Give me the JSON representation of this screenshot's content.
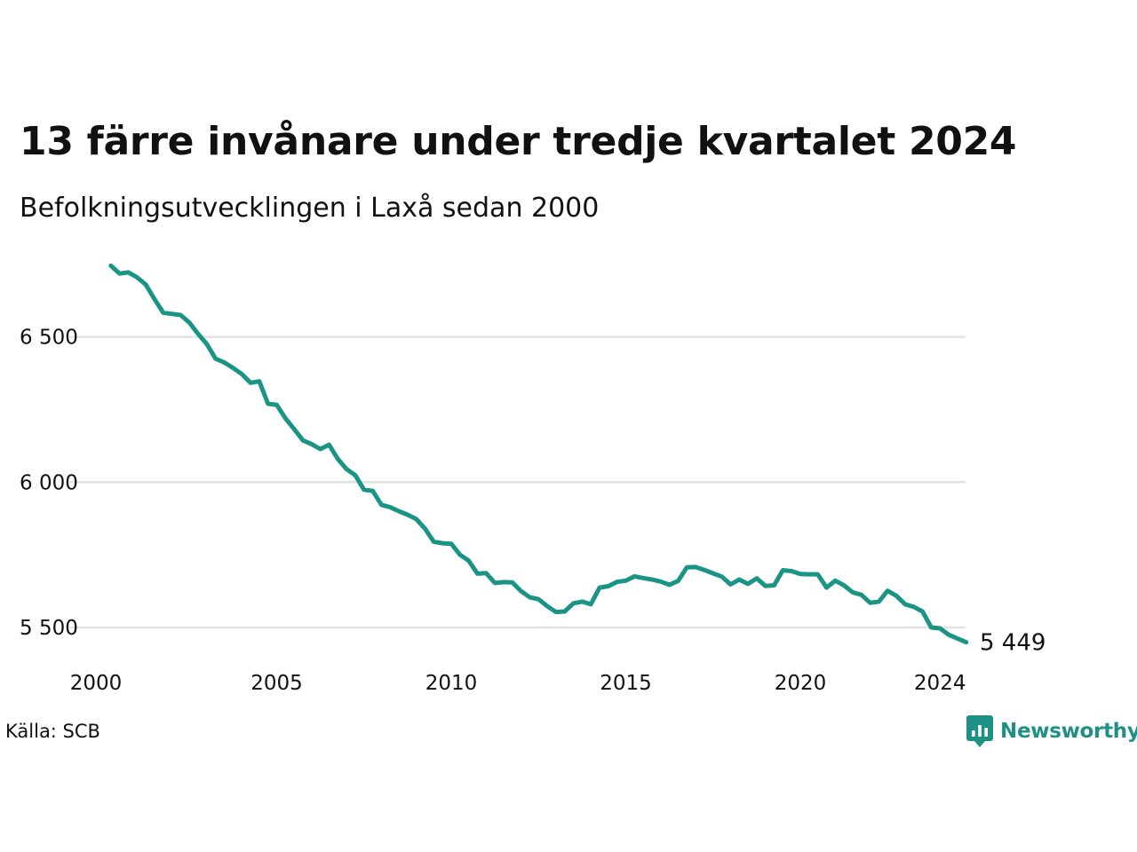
{
  "title": "13 färre invånare under tredje kvartalet 2024",
  "subtitle": "Befolkningsutvecklingen i Laxå sedan 2000",
  "source": "Källa: SCB",
  "brand": {
    "name": "Newsworthy",
    "icon": "newsworthy-logo-icon",
    "color": "#1f9086"
  },
  "colors": {
    "line": "#1a9585",
    "grid": "#e2e2e2",
    "text": "#111111"
  },
  "chart_data": {
    "type": "line",
    "title": "13 färre invånare under tredje kvartalet 2024",
    "subtitle": "Befolkningsutvecklingen i Laxå sedan 2000",
    "xlabel": "",
    "ylabel": "",
    "xlim": [
      2000.0,
      2024.75
    ],
    "ylim": [
      5400,
      6750
    ],
    "grid": "horizontal",
    "legend": "none",
    "x_ticks": [
      {
        "value": 2000,
        "label": "2000"
      },
      {
        "value": 2005,
        "label": "2005"
      },
      {
        "value": 2010,
        "label": "2010"
      },
      {
        "value": 2015,
        "label": "2015"
      },
      {
        "value": 2020,
        "label": "2020"
      },
      {
        "value": 2024,
        "label": "2024"
      }
    ],
    "y_ticks": [
      {
        "value": 5500,
        "label": "5 500"
      },
      {
        "value": 6000,
        "label": "6 000"
      },
      {
        "value": 6500,
        "label": "6 500"
      }
    ],
    "last_value_label": "5 449",
    "x": [
      2000.25,
      2000.5,
      2000.75,
      2001.0,
      2001.25,
      2001.5,
      2001.75,
      2002.0,
      2002.25,
      2002.5,
      2002.75,
      2003.0,
      2003.25,
      2003.5,
      2003.75,
      2004.0,
      2004.25,
      2004.5,
      2004.75,
      2005.0,
      2005.25,
      2005.5,
      2005.75,
      2006.0,
      2006.25,
      2006.5,
      2006.75,
      2007.0,
      2007.25,
      2007.5,
      2007.75,
      2008.0,
      2008.25,
      2008.5,
      2008.75,
      2009.0,
      2009.25,
      2009.5,
      2009.75,
      2010.0,
      2010.25,
      2010.5,
      2010.75,
      2011.0,
      2011.25,
      2011.5,
      2011.75,
      2012.0,
      2012.25,
      2012.5,
      2012.75,
      2013.0,
      2013.25,
      2013.5,
      2013.75,
      2014.0,
      2014.25,
      2014.5,
      2014.75,
      2015.0,
      2015.25,
      2015.5,
      2015.75,
      2016.0,
      2016.25,
      2016.5,
      2016.75,
      2017.0,
      2017.25,
      2017.5,
      2017.75,
      2018.0,
      2018.25,
      2018.5,
      2018.75,
      2019.0,
      2019.25,
      2019.5,
      2019.75,
      2020.0,
      2020.25,
      2020.5,
      2020.75,
      2021.0,
      2021.25,
      2021.5,
      2021.75,
      2022.0,
      2022.25,
      2022.5,
      2022.75,
      2023.0,
      2023.25,
      2023.5,
      2023.75,
      2024.0,
      2024.25,
      2024.5,
      2024.75
    ],
    "series": [
      {
        "values": [
          6745,
          6718,
          6722,
          6705,
          6680,
          6630,
          6583,
          6579,
          6575,
          6549,
          6510,
          6475,
          6425,
          6412,
          6393,
          6372,
          6342,
          6347,
          6270,
          6266,
          6220,
          6183,
          6144,
          6131,
          6114,
          6129,
          6080,
          6045,
          6024,
          5974,
          5970,
          5922,
          5914,
          5900,
          5888,
          5873,
          5840,
          5795,
          5790,
          5788,
          5750,
          5730,
          5685,
          5687,
          5653,
          5656,
          5655,
          5625,
          5604,
          5597,
          5573,
          5553,
          5555,
          5583,
          5589,
          5580,
          5637,
          5642,
          5657,
          5661,
          5676,
          5670,
          5665,
          5658,
          5647,
          5660,
          5707,
          5708,
          5698,
          5686,
          5675,
          5648,
          5665,
          5650,
          5669,
          5643,
          5645,
          5697,
          5694,
          5684,
          5683,
          5683,
          5637,
          5661,
          5645,
          5621,
          5612,
          5585,
          5589,
          5626,
          5609,
          5580,
          5571,
          5555,
          5500,
          5497,
          5475,
          5462,
          5449
        ]
      }
    ]
  }
}
